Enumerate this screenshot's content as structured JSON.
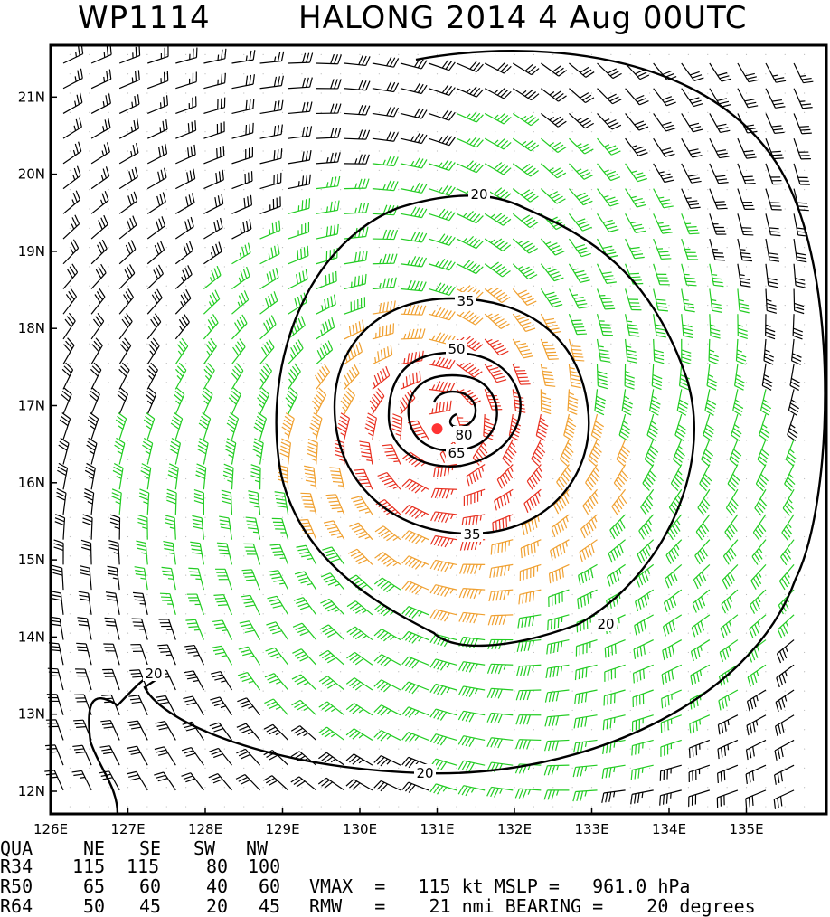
{
  "header": {
    "storm_id": "WP1114",
    "title": "HALONG 2014  4 Aug 00UTC"
  },
  "map": {
    "lon_ticks": [
      "126E",
      "127E",
      "128E",
      "129E",
      "130E",
      "131E",
      "132E",
      "133E",
      "134E",
      "135E"
    ],
    "lat_ticks": [
      "12N",
      "13N",
      "14N",
      "15N",
      "16N",
      "17N",
      "18N",
      "19N",
      "20N",
      "21N"
    ],
    "contour_labels": [
      "20",
      "20",
      "20",
      "20",
      "35",
      "35",
      "50",
      "65",
      "80"
    ],
    "storm_center": {
      "lon": 131.0,
      "lat": 16.7
    },
    "colors": {
      "wind_lt34": "#000000",
      "wind_34_50": "#22cc22",
      "wind_50_64": "#f0a030",
      "wind_64_plus": "#e83020",
      "center_marker": "#ff3333"
    }
  },
  "wind_radii": {
    "headers": [
      "QUA",
      "NE",
      "SE",
      "SW",
      "NW"
    ],
    "rows": [
      {
        "label": "R34",
        "values": [
          "115",
          "115",
          "80",
          "100"
        ]
      },
      {
        "label": "R50",
        "values": [
          "65",
          "60",
          "40",
          "60"
        ]
      },
      {
        "label": "R64",
        "values": [
          "50",
          "45",
          "20",
          "45"
        ]
      }
    ]
  },
  "stats": {
    "vmax_line": "VMAX  =   115 kt MSLP =   961.0 hPa",
    "rmw_line": "RMW   =    21 nmi BEARING =    20 degrees"
  }
}
